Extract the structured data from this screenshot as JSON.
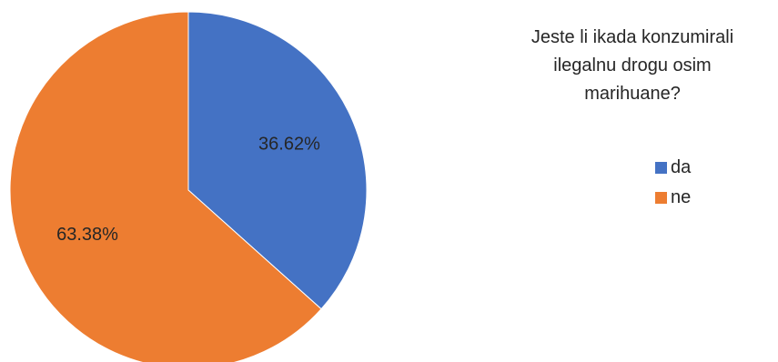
{
  "chart_data": {
    "type": "pie",
    "title": "Jeste li ikada konzumirali ilegalnu drogu osim marihuane?",
    "slices": [
      {
        "label": "da",
        "value": 36.62,
        "data_label": "36.62%",
        "color": "#4472C4"
      },
      {
        "label": "ne",
        "value": 63.38,
        "data_label": "63.38%",
        "color": "#ED7D31"
      }
    ],
    "legend_position": "right"
  }
}
